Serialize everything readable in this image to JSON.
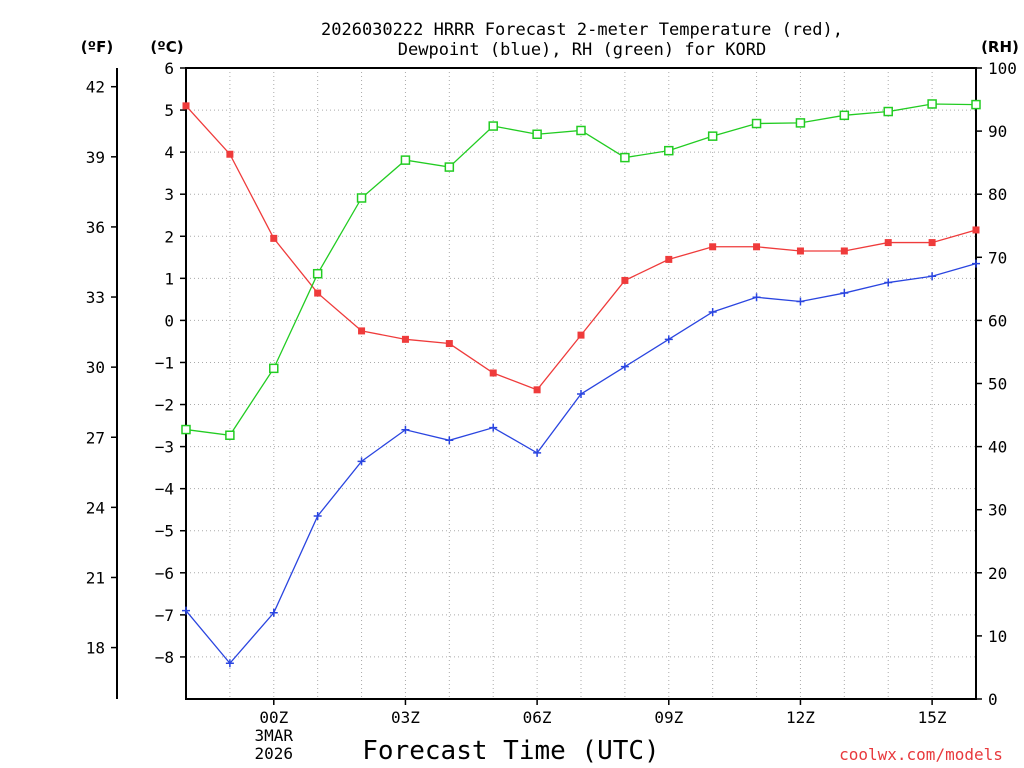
{
  "chart_data": {
    "type": "line",
    "title_line1": "2026030222 HRRR Forecast 2-meter Temperature (red),",
    "title_line2": "Dewpoint (blue), RH (green) for KORD",
    "xlabel": "Forecast Time (UTC)",
    "units": {
      "fahrenheit": "(ºF)",
      "celsius": "(ºC)",
      "rh": "(RH)"
    },
    "credit": "coolwx.com/models",
    "x": [
      -2,
      -1,
      0,
      1,
      2,
      3,
      4,
      5,
      6,
      7,
      8,
      9,
      10,
      11,
      12,
      13,
      14,
      15,
      16
    ],
    "xlim": [
      -2,
      16
    ],
    "x_ticks": [
      {
        "x": 0,
        "label": "00Z",
        "sub1": "3MAR",
        "sub2": "2026"
      },
      {
        "x": 3,
        "label": "03Z"
      },
      {
        "x": 6,
        "label": "06Z"
      },
      {
        "x": 9,
        "label": "09Z"
      },
      {
        "x": 12,
        "label": "12Z"
      },
      {
        "x": 15,
        "label": "15Z"
      }
    ],
    "axes": {
      "celsius": {
        "min": -9,
        "max": 6,
        "ticks": [
          6,
          5,
          4,
          3,
          2,
          1,
          0,
          -1,
          -2,
          -3,
          -4,
          -5,
          -6,
          -7,
          -8
        ]
      },
      "fahrenheit": {
        "ticks": [
          42,
          39,
          36,
          33,
          30,
          27,
          24,
          21,
          18
        ]
      },
      "rh": {
        "min": 0,
        "max": 100,
        "ticks": [
          0,
          10,
          20,
          30,
          40,
          50,
          60,
          70,
          80,
          90,
          100
        ]
      }
    },
    "series": [
      {
        "name": "Temperature",
        "axis": "celsius",
        "color": "#ef3b3b",
        "marker": "filled-square",
        "values": [
          5.1,
          3.95,
          1.95,
          0.65,
          -0.25,
          -0.45,
          -0.55,
          -1.25,
          -1.65,
          -0.35,
          0.95,
          1.45,
          1.75,
          1.75,
          1.65,
          1.65,
          1.85,
          1.85,
          2.15
        ]
      },
      {
        "name": "Dewpoint",
        "axis": "celsius",
        "color": "#2a45e0",
        "marker": "plus",
        "values": [
          -6.9,
          -8.15,
          -6.95,
          -4.65,
          -3.35,
          -2.6,
          -2.85,
          -2.55,
          -3.15,
          -1.75,
          -1.1,
          -0.45,
          0.2,
          0.55,
          0.45,
          0.65,
          0.9,
          1.05,
          1.35
        ]
      },
      {
        "name": "RH",
        "axis": "rh",
        "color": "#22cc22",
        "marker": "open-square",
        "values": [
          42.7,
          41.8,
          52.4,
          67.4,
          79.4,
          85.4,
          84.3,
          90.8,
          89.5,
          90.1,
          85.8,
          86.9,
          89.2,
          91.2,
          91.3,
          92.5,
          93.1,
          94.3,
          94.2
        ]
      }
    ]
  }
}
